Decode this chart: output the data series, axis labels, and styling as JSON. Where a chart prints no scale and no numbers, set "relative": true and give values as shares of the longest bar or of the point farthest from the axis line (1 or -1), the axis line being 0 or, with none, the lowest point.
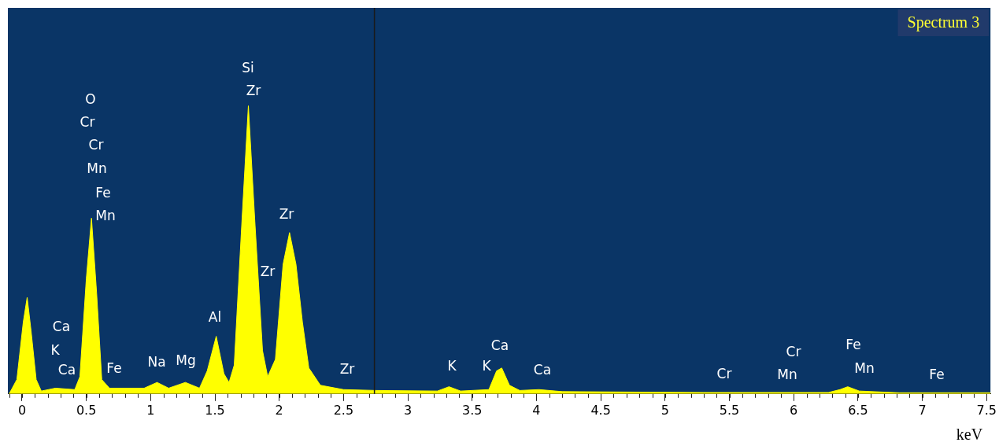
{
  "chart_data": {
    "type": "area",
    "title": "Spectrum 3",
    "xlabel": "keV",
    "relative": true,
    "xlim": [
      -0.11,
      7.53
    ],
    "xticks": [
      0,
      0.5,
      1,
      1.5,
      2,
      2.5,
      3,
      3.5,
      4,
      4.5,
      5,
      5.5,
      6,
      6.5,
      7,
      7.5
    ],
    "x": [
      -0.1,
      -0.04,
      0.01,
      0.04,
      0.07,
      0.11,
      0.15,
      0.26,
      0.41,
      0.45,
      0.5,
      0.54,
      0.58,
      0.62,
      0.68,
      0.95,
      1.05,
      1.14,
      1.27,
      1.38,
      1.44,
      1.51,
      1.57,
      1.61,
      1.65,
      1.71,
      1.76,
      1.81,
      1.87,
      1.91,
      1.97,
      2.03,
      2.08,
      2.13,
      2.18,
      2.23,
      2.32,
      2.5,
      2.75,
      3.23,
      3.32,
      3.41,
      3.63,
      3.69,
      3.73,
      3.79,
      3.87,
      4.02,
      4.2,
      5.3,
      6.27,
      6.36,
      6.42,
      6.51,
      6.82,
      7.53
    ],
    "series": [
      {
        "color": "#ffff00",
        "values": [
          0,
          0.05,
          0.25,
          0.335,
          0.22,
          0.05,
          0.01,
          0.02,
          0.015,
          0.06,
          0.4,
          0.61,
          0.35,
          0.05,
          0.02,
          0.02,
          0.04,
          0.02,
          0.04,
          0.02,
          0.08,
          0.2,
          0.07,
          0.04,
          0.1,
          0.6,
          1,
          0.6,
          0.15,
          0.06,
          0.12,
          0.45,
          0.56,
          0.45,
          0.25,
          0.09,
          0.03,
          0.015,
          0.012,
          0.01,
          0.025,
          0.01,
          0.015,
          0.08,
          0.09,
          0.03,
          0.012,
          0.015,
          0.008,
          0.005,
          0.005,
          0.015,
          0.025,
          0.01,
          0.004,
          0.004
        ]
      }
    ],
    "ref_lines": [
      {
        "axis": "x",
        "value": 2.74,
        "color": "#1a1a1a"
      }
    ],
    "annotations": [
      "O",
      "Cr",
      "Cr",
      "Mn",
      "Fe",
      "Mn",
      "Si",
      "Zr",
      "Zr",
      "Zr",
      "Ca",
      "K",
      "Ca",
      "Fe",
      "Na",
      "Mg",
      "Al",
      "Zr",
      "K",
      "K",
      "Ca",
      "Ca",
      "Cr",
      "Cr",
      "Mn",
      "Fe",
      "Mn",
      "Fe"
    ]
  }
}
